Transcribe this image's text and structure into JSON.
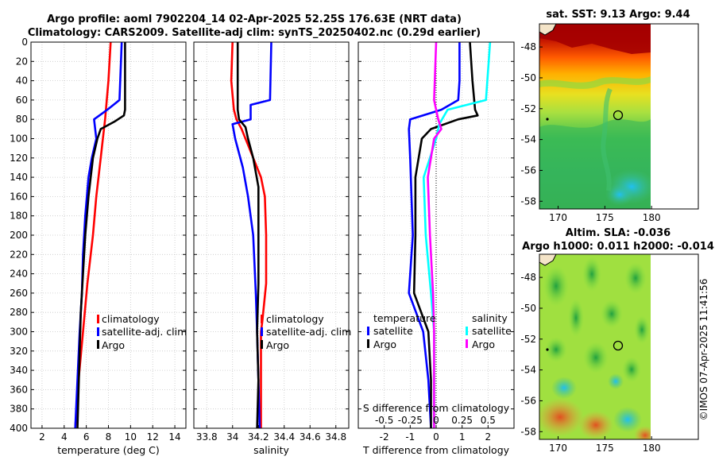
{
  "titles": {
    "line1": "Argo profile: aoml 7902204_14 02-Apr-2025 52.25S 176.63E (NRT data)",
    "line2": "Climatology: CARS2009. Satellite-adj clim: synTS_20250402.nc (0.29d earlier)",
    "sst_title": "sat. SST: 9.13 Argo: 9.44",
    "sla_title1": "Altim. SLA: -0.036",
    "sla_title2": "Argo h1000: 0.011 h2000: -0.014",
    "watermark": "©IMOS 07-Apr-2025 11:41:56"
  },
  "colors": {
    "climatology": "#ff0000",
    "satellite": "#0000ff",
    "argo": "#000000",
    "sal_satellite": "#00ffff",
    "sal_diff": "#ff00ff"
  },
  "depth_axis": {
    "ylim": [
      0,
      400
    ],
    "ticks": [
      0,
      20,
      40,
      60,
      80,
      100,
      120,
      140,
      160,
      180,
      200,
      220,
      240,
      260,
      280,
      300,
      320,
      340,
      360,
      380,
      400
    ]
  },
  "chart_data": [
    {
      "type": "line",
      "name": "temperature",
      "xlabel": "temperature (deg C)",
      "xlim": [
        1,
        15
      ],
      "xticks": [
        2,
        4,
        6,
        8,
        10,
        12,
        14
      ],
      "legend": [
        "climatology",
        "satellite-adj. clim",
        "Argo"
      ],
      "series": [
        {
          "name": "climatology",
          "depth": [
            0,
            40,
            80,
            100,
            120,
            160,
            200,
            250,
            300,
            350,
            400
          ],
          "values": [
            8.2,
            8.0,
            7.7,
            7.5,
            7.3,
            6.9,
            6.6,
            6.1,
            5.7,
            5.3,
            5.0
          ]
        },
        {
          "name": "satellite-adj. clim",
          "depth": [
            0,
            60,
            70,
            80,
            100,
            120,
            140,
            180,
            220,
            260,
            300,
            350,
            400
          ],
          "values": [
            9.2,
            9.0,
            7.9,
            6.7,
            6.9,
            6.5,
            6.2,
            5.9,
            5.7,
            5.6,
            5.4,
            5.2,
            5.0
          ]
        },
        {
          "name": "Argo",
          "depth": [
            0,
            70,
            76,
            82,
            90,
            100,
            120,
            160,
            200,
            240,
            280,
            320,
            360,
            400
          ],
          "values": [
            9.5,
            9.5,
            9.4,
            8.6,
            7.3,
            7.0,
            6.6,
            6.2,
            5.9,
            5.7,
            5.5,
            5.4,
            5.3,
            5.2
          ]
        }
      ]
    },
    {
      "type": "line",
      "name": "salinity",
      "xlabel": "salinity",
      "xlim": [
        33.7,
        34.9
      ],
      "xticks": [
        33.8,
        34,
        34.2,
        34.4,
        34.6,
        34.8
      ],
      "xticklabels": [
        "33.8",
        "34",
        "34.2",
        "34.4",
        "34.6",
        "34.8"
      ],
      "legend": [
        "climatology",
        "satellite-adj. clim",
        "Argo"
      ],
      "series": [
        {
          "name": "climatology",
          "depth": [
            0,
            40,
            70,
            80,
            90,
            110,
            140,
            160,
            200,
            250,
            290,
            300,
            350,
            400
          ],
          "values": [
            34.0,
            33.99,
            34.01,
            34.03,
            34.07,
            34.13,
            34.22,
            34.25,
            34.26,
            34.26,
            34.23,
            34.22,
            34.22,
            34.22
          ]
        },
        {
          "name": "satellite-adj. clim",
          "depth": [
            0,
            60,
            65,
            80,
            85,
            100,
            130,
            160,
            200,
            260,
            300,
            350,
            400
          ],
          "values": [
            34.3,
            34.29,
            34.14,
            34.14,
            34.0,
            34.02,
            34.08,
            34.12,
            34.16,
            34.18,
            34.19,
            34.2,
            34.21
          ]
        },
        {
          "name": "Argo",
          "depth": [
            0,
            70,
            80,
            88,
            100,
            120,
            150,
            200,
            250,
            300,
            350,
            400
          ],
          "values": [
            34.04,
            34.04,
            34.05,
            34.1,
            34.12,
            34.16,
            34.2,
            34.2,
            34.2,
            34.19,
            34.2,
            34.19
          ]
        }
      ]
    },
    {
      "type": "line",
      "name": "differences",
      "xlabel": "T difference from climatology",
      "xlim": [
        -3,
        3
      ],
      "xticks": [
        -2,
        -1,
        0,
        1,
        2
      ],
      "top_label": "S difference from climatology",
      "top_xlim": [
        -0.75,
        0.75
      ],
      "top_xticks": [
        -0.5,
        -0.25,
        0,
        0.25,
        0.5
      ],
      "top_xticklabels": [
        "-0.5",
        "-0.25",
        "0",
        "0.25",
        "0.5"
      ],
      "legend_groups": [
        {
          "header": "temperature",
          "items": [
            "satellite",
            "Argo"
          ]
        },
        {
          "header": "salinity",
          "items": [
            "satellite",
            "Argo"
          ]
        }
      ],
      "series": [
        {
          "name": "temperature satellite",
          "depth": [
            0,
            40,
            60,
            70,
            80,
            90,
            120,
            200,
            260,
            300,
            350,
            400
          ],
          "values": [
            0.9,
            0.9,
            0.85,
            0.2,
            -1.0,
            -1.05,
            -1.0,
            -0.9,
            -1.05,
            -0.5,
            -0.3,
            -0.2
          ]
        },
        {
          "name": "temperature Argo",
          "depth": [
            0,
            40,
            70,
            76,
            80,
            90,
            100,
            140,
            200,
            260,
            300,
            350,
            400
          ],
          "values": [
            1.3,
            1.4,
            1.5,
            1.6,
            0.85,
            -0.2,
            -0.55,
            -0.8,
            -0.8,
            -0.85,
            -0.3,
            -0.2,
            -0.2
          ]
        },
        {
          "name": "salinity satellite",
          "depth": [
            0,
            60,
            70,
            85,
            100,
            140,
            200,
            260,
            300,
            350,
            400
          ],
          "values": [
            0.52,
            0.48,
            0.11,
            0.03,
            0.0,
            -0.12,
            -0.1,
            -0.05,
            -0.02,
            -0.02,
            -0.02
          ]
        },
        {
          "name": "salinity Argo",
          "depth": [
            0,
            60,
            80,
            90,
            100,
            140,
            200,
            260,
            300,
            350,
            400
          ],
          "values": [
            0.0,
            -0.02,
            0.02,
            0.05,
            -0.02,
            -0.08,
            -0.06,
            -0.03,
            -0.02,
            -0.02,
            -0.02
          ]
        }
      ]
    },
    {
      "type": "heatmap",
      "name": "sat_sst_map",
      "xticks": [
        170,
        175,
        180
      ],
      "yticks": [
        -48,
        -50,
        -52,
        -54,
        -56,
        -58
      ],
      "xlim": [
        168,
        185
      ],
      "ylim": [
        -58.5,
        -46.5
      ],
      "marker": {
        "lon": 176.63,
        "lat": -52.25
      }
    },
    {
      "type": "heatmap",
      "name": "altim_sla_map",
      "xticks": [
        170,
        175,
        180
      ],
      "yticks": [
        -48,
        -50,
        -52,
        -54,
        -56,
        -58
      ],
      "xlim": [
        168,
        185
      ],
      "ylim": [
        -58.5,
        -46.5
      ],
      "marker": {
        "lon": 176.63,
        "lat": -52.25
      }
    }
  ]
}
